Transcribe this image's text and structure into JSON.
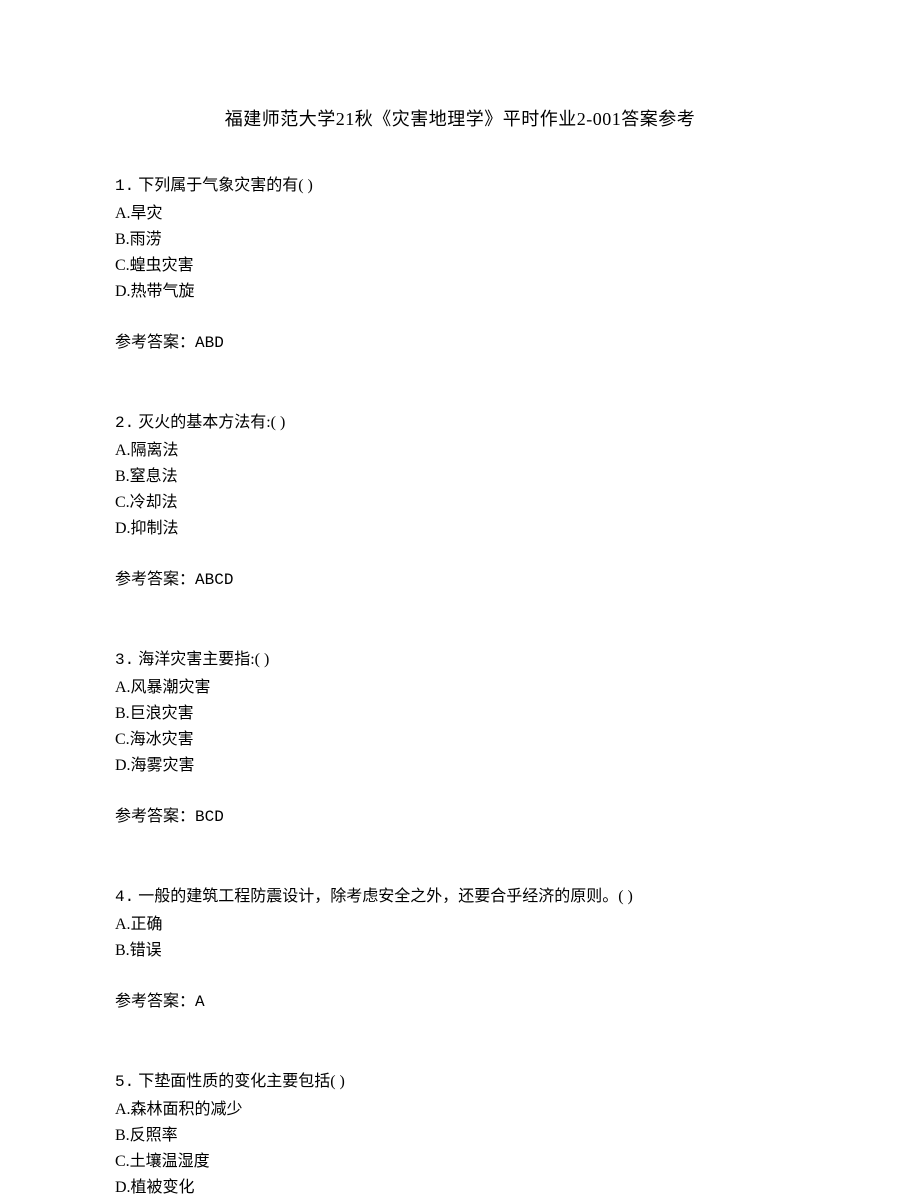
{
  "title": "福建师范大学21秋《灾害地理学》平时作业2-001答案参考",
  "questions": [
    {
      "number": "1.",
      "text": "下列属于气象灾害的有(   )",
      "options": [
        "A.旱灾",
        "B.雨涝",
        "C.蝗虫灾害",
        "D.热带气旋"
      ],
      "answer_label": "参考答案：",
      "answer_value": "ABD"
    },
    {
      "number": "2.",
      "text": "灭火的基本方法有:(   )",
      "options": [
        "A.隔离法",
        "B.窒息法",
        "C.冷却法",
        "D.抑制法"
      ],
      "answer_label": "参考答案：",
      "answer_value": "ABCD"
    },
    {
      "number": "3.",
      "text": "海洋灾害主要指:(   )",
      "options": [
        "A.风暴潮灾害",
        "B.巨浪灾害",
        "C.海冰灾害",
        "D.海雾灾害"
      ],
      "answer_label": "参考答案：",
      "answer_value": "BCD"
    },
    {
      "number": "4.",
      "text": "一般的建筑工程防震设计，除考虑安全之外，还要合乎经济的原则。(   )",
      "options": [
        "A.正确",
        "B.错误"
      ],
      "answer_label": "参考答案：",
      "answer_value": "A"
    },
    {
      "number": "5.",
      "text": "下垫面性质的变化主要包括(   )",
      "options": [
        "A.森林面积的减少",
        "B.反照率",
        "C.土壤温湿度",
        "D.植被变化"
      ],
      "answer_label": "",
      "answer_value": ""
    }
  ]
}
